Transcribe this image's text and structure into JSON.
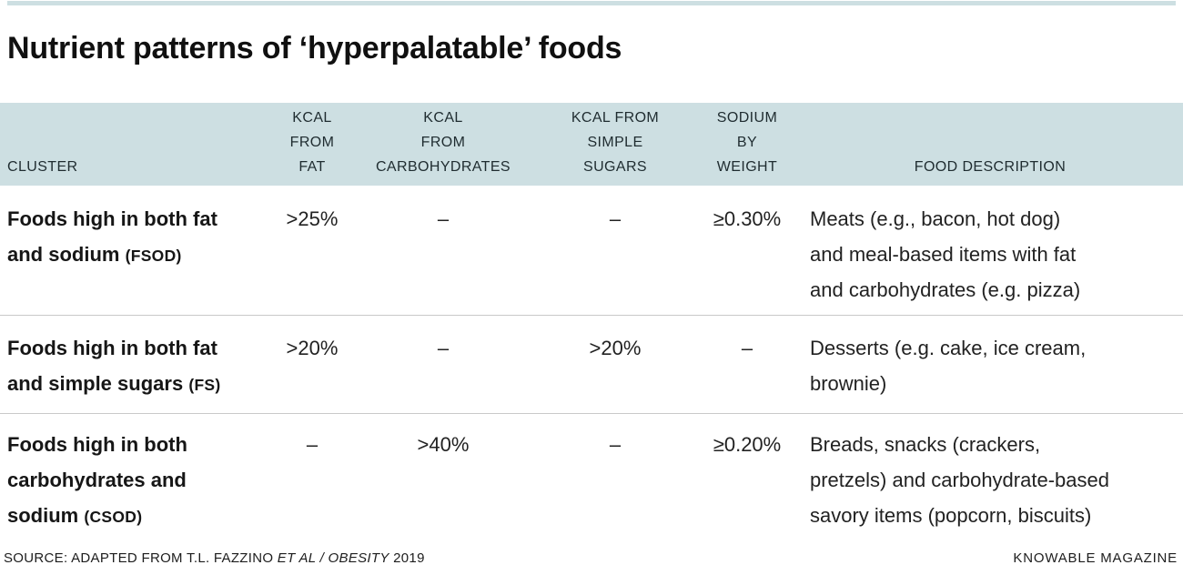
{
  "page": {
    "title": "Nutrient patterns of ‘hyperpalatable’ foods",
    "accent_color": "#cddfe2",
    "separator_color": "#c9c9c9"
  },
  "table": {
    "columns": [
      {
        "id": "cluster",
        "label": "CLUSTER"
      },
      {
        "id": "kcal-from-fat",
        "lines": [
          "KCAL",
          "FROM",
          "FAT"
        ]
      },
      {
        "id": "kcal-from-carbohydrates",
        "lines": [
          "KCAL",
          "FROM",
          "CARBOHYDRATES"
        ]
      },
      {
        "id": "kcal-from-simple-sugars",
        "lines": [
          "KCAL FROM",
          "SIMPLE",
          "SUGARS"
        ]
      },
      {
        "id": "sodium-by-weight",
        "lines": [
          "SODIUM",
          "BY",
          "WEIGHT"
        ]
      },
      {
        "id": "food-description",
        "label": "FOOD DESCRIPTION"
      }
    ],
    "rows": [
      {
        "cluster_line1": "Foods high in both fat",
        "cluster_line2": "and sodium",
        "code": "(FSOD)",
        "kcal_fat": ">25%",
        "kcal_carbs": "–",
        "kcal_sugars": "–",
        "sodium": "≥0.30%",
        "description_lines": [
          "Meats (e.g., bacon, hot dog)",
          "and meal-based items with fat",
          "and carbohydrates (e.g. pizza)"
        ]
      },
      {
        "cluster_line1": "Foods high in both fat",
        "cluster_line2": "and simple sugars",
        "code": "(FS)",
        "kcal_fat": ">20%",
        "kcal_carbs": "–",
        "kcal_sugars": ">20%",
        "sodium": "–",
        "description_lines": [
          "Desserts (e.g. cake, ice cream,",
          "brownie)"
        ]
      },
      {
        "cluster_line1": "Foods high in both",
        "cluster_line2": "carbohydrates and",
        "cluster_line3": "sodium",
        "code": "(CSOD)",
        "kcal_fat": "–",
        "kcal_carbs": ">40%",
        "kcal_sugars": "–",
        "sodium": "≥0.20%",
        "description_lines": [
          "Breads, snacks (crackers,",
          "pretzels) and carbohydrate-based",
          "savory items (popcorn, biscuits)"
        ]
      }
    ]
  },
  "footer": {
    "source_prefix": "SOURCE: ADAPTED FROM T.L. FAZZINO ",
    "source_italic": "ET AL / OBESITY",
    "source_suffix": " 2019",
    "credit": "KNOWABLE MAGAZINE"
  },
  "chart_data": {
    "type": "table",
    "title": "Nutrient patterns of ‘hyperpalatable’ foods",
    "columns": [
      "CLUSTER",
      "KCAL FROM FAT",
      "KCAL FROM CARBOHYDRATES",
      "KCAL FROM SIMPLE SUGARS",
      "SODIUM BY WEIGHT",
      "FOOD DESCRIPTION"
    ],
    "rows": [
      [
        "Foods high in both fat and sodium (FSOD)",
        ">25%",
        "–",
        "–",
        "≥0.30%",
        "Meats (e.g., bacon, hot dog) and meal-based items with fat and carbohydrates (e.g. pizza)"
      ],
      [
        "Foods high in both fat and simple sugars (FS)",
        ">20%",
        "–",
        ">20%",
        "–",
        "Desserts (e.g. cake, ice cream, brownie)"
      ],
      [
        "Foods high in both carbohydrates and sodium (CSOD)",
        "–",
        ">40%",
        "–",
        "≥0.20%",
        "Breads, snacks (crackers, pretzels) and carbohydrate-based savory items (popcorn, biscuits)"
      ]
    ],
    "source": "SOURCE: ADAPTED FROM T.L. FAZZINO ET AL / OBESITY 2019",
    "credit": "KNOWABLE MAGAZINE"
  }
}
